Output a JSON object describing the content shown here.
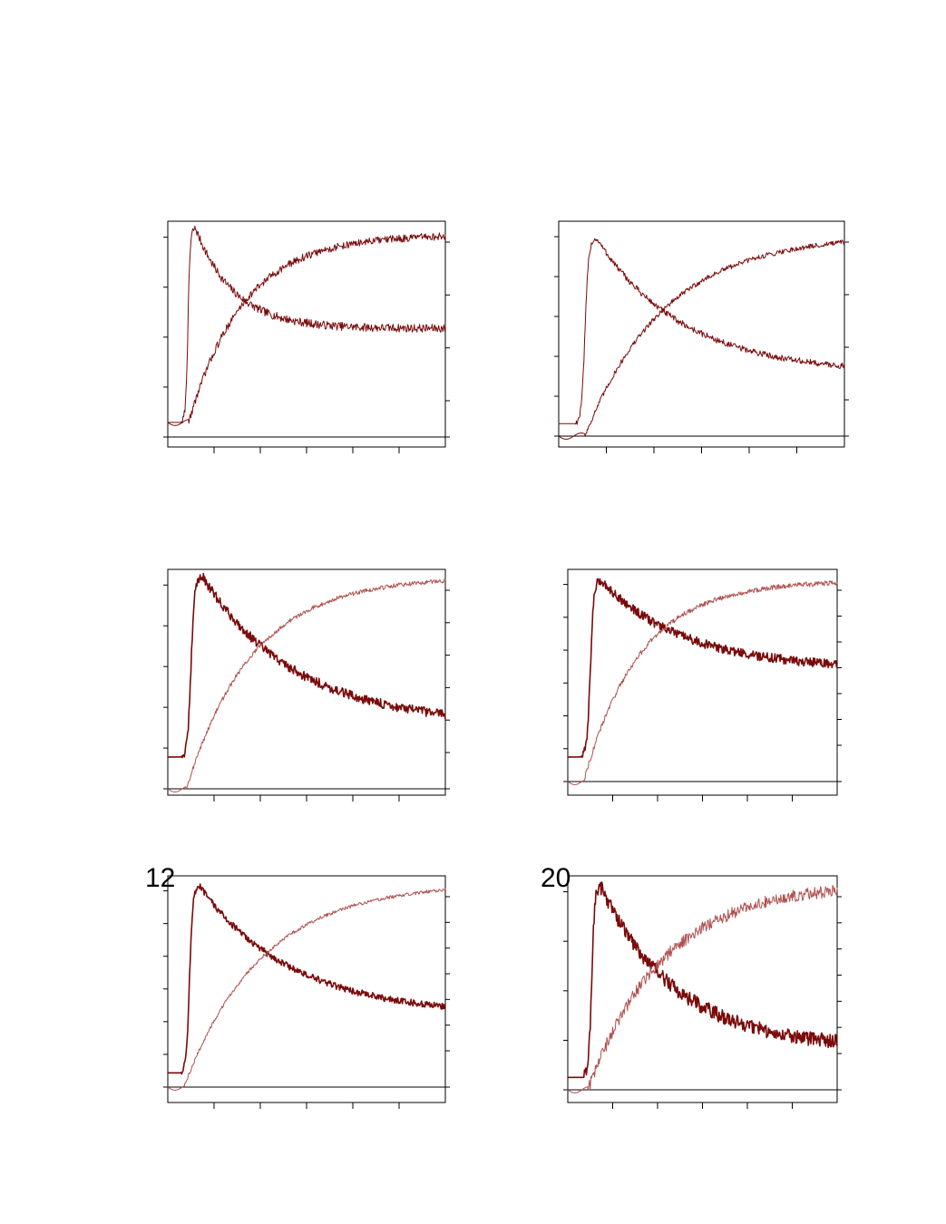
{
  "figure": {
    "clipped_labels": [
      "12",
      "20"
    ]
  },
  "colors": {
    "dark_trace": "#7a0a0a",
    "light_trace": "#b05050",
    "axis": "#000000"
  },
  "chart_data": [
    {
      "type": "line",
      "panel": "top-left",
      "x_range": [
        0,
        6
      ],
      "y_range": [
        -0.05,
        1.0
      ],
      "series": [
        {
          "role": "transient",
          "color": "#7a0a0a",
          "width": 1.0,
          "start": 0.07,
          "rise_start": 0.3,
          "rise_width": 0.18,
          "peak_time": 0.6,
          "peak": 1.0,
          "decay_to": 0.52,
          "decay_rate": 1.2,
          "noise": 0.02
        },
        {
          "role": "sustained",
          "color": "#7a0a0a",
          "width": 1.0,
          "start": 0.07,
          "rise_start": 0.45,
          "final": 0.97,
          "rate": 0.85,
          "noise": 0.018
        }
      ],
      "ticks": {
        "bottom": 5,
        "left": 4,
        "right": 4
      }
    },
    {
      "type": "line",
      "panel": "top-right",
      "x_range": [
        0,
        6
      ],
      "y_range": [
        -0.05,
        1.0
      ],
      "series": [
        {
          "role": "transient",
          "color": "#7a0a0a",
          "width": 1.0,
          "start": 0.06,
          "rise_start": 0.35,
          "rise_width": 0.2,
          "peak_time": 0.8,
          "peak": 0.95,
          "decay_to": 0.3,
          "decay_rate": 0.55,
          "noise": 0.015
        },
        {
          "role": "sustained",
          "color": "#7a0a0a",
          "width": 1.0,
          "start": 0.0,
          "rise_start": 0.55,
          "final": 0.97,
          "rate": 0.6,
          "noise": 0.012
        }
      ],
      "ticks": {
        "bottom": 5,
        "left": 5,
        "right": 4
      }
    },
    {
      "type": "line",
      "panel": "middle-left",
      "x_range": [
        0,
        6
      ],
      "y_range": [
        -0.05,
        1.0
      ],
      "series": [
        {
          "role": "transient",
          "color": "#7a0a0a",
          "width": 1.6,
          "start": 0.15,
          "rise_start": 0.3,
          "rise_width": 0.2,
          "peak_time": 0.75,
          "peak": 1.0,
          "decay_to": 0.3,
          "decay_rate": 0.5,
          "noise": 0.022
        },
        {
          "role": "sustained",
          "color": "#b05050",
          "width": 1.0,
          "start": 0.0,
          "rise_start": 0.4,
          "final": 1.0,
          "rate": 0.7,
          "noise": 0.01
        }
      ],
      "ticks": {
        "bottom": 5,
        "left": 5,
        "right": 6
      }
    },
    {
      "type": "line",
      "panel": "middle-right",
      "x_range": [
        0,
        6
      ],
      "y_range": [
        -0.05,
        1.0
      ],
      "series": [
        {
          "role": "transient",
          "color": "#7a0a0a",
          "width": 1.6,
          "start": 0.12,
          "rise_start": 0.3,
          "rise_width": 0.18,
          "peak_time": 0.75,
          "peak": 0.98,
          "decay_to": 0.55,
          "decay_rate": 0.55,
          "noise": 0.022
        },
        {
          "role": "sustained",
          "color": "#b05050",
          "width": 1.0,
          "start": 0.0,
          "rise_start": 0.35,
          "final": 0.98,
          "rate": 0.8,
          "noise": 0.012
        }
      ],
      "ticks": {
        "bottom": 5,
        "left": 6,
        "right": 7
      }
    },
    {
      "type": "line",
      "panel": "bottom-left",
      "x_range": [
        0,
        6
      ],
      "y_range": [
        -0.05,
        1.0
      ],
      "series": [
        {
          "role": "transient",
          "color": "#7a0a0a",
          "width": 1.6,
          "start": 0.07,
          "rise_start": 0.28,
          "rise_width": 0.18,
          "peak_time": 0.7,
          "peak": 0.98,
          "decay_to": 0.35,
          "decay_rate": 0.5,
          "noise": 0.016
        },
        {
          "role": "sustained",
          "color": "#b05050",
          "width": 1.0,
          "start": 0.0,
          "rise_start": 0.35,
          "final": 1.0,
          "rate": 0.6,
          "noise": 0.008
        }
      ],
      "ticks": {
        "bottom": 5,
        "left": 6,
        "right": 7
      }
    },
    {
      "type": "line",
      "panel": "bottom-right",
      "x_range": [
        0,
        6
      ],
      "y_range": [
        -0.05,
        1.0
      ],
      "series": [
        {
          "role": "transient",
          "color": "#7a0a0a",
          "width": 1.6,
          "start": 0.06,
          "rise_start": 0.35,
          "rise_width": 0.12,
          "peak_time": 0.75,
          "peak": 0.98,
          "decay_to": 0.2,
          "decay_rate": 0.6,
          "noise": 0.035
        },
        {
          "role": "sustained",
          "color": "#b05050",
          "width": 1.0,
          "start": 0.0,
          "rise_start": 0.45,
          "final": 1.0,
          "rate": 0.6,
          "noise": 0.03
        }
      ],
      "ticks": {
        "bottom": 5,
        "left": 4,
        "right": 7
      }
    }
  ]
}
